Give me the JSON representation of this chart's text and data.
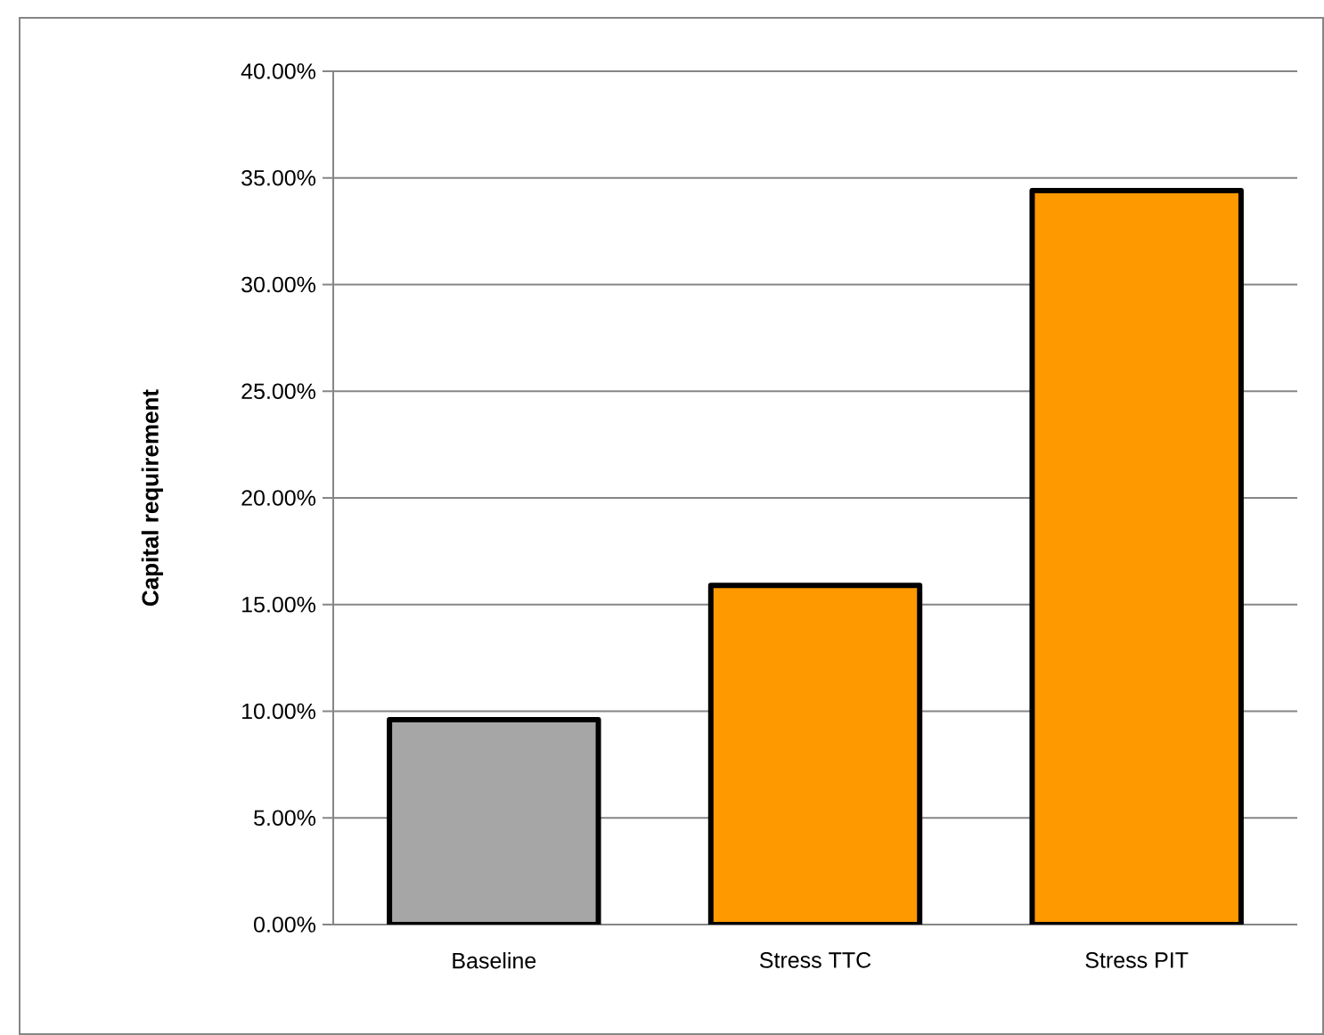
{
  "chart_data": {
    "type": "bar",
    "ylabel": "Capital requirement",
    "categories": [
      "Baseline",
      "Stress TTC",
      "Stress PIT"
    ],
    "values": [
      9.6,
      15.9,
      34.4
    ],
    "colors": [
      "#a6a6a6",
      "#ff9900",
      "#ff9900"
    ],
    "ylim": [
      0,
      40
    ],
    "yticks": [
      {
        "value": 0,
        "label": "0.00%"
      },
      {
        "value": 5,
        "label": "5.00%"
      },
      {
        "value": 10,
        "label": "10.00%"
      },
      {
        "value": 15,
        "label": "15.00%"
      },
      {
        "value": 20,
        "label": "20.00%"
      },
      {
        "value": 25,
        "label": "25.00%"
      },
      {
        "value": 30,
        "label": "30.00%"
      },
      {
        "value": 35,
        "label": "35.00%"
      },
      {
        "value": 40,
        "label": "40.00%"
      }
    ],
    "grid": "y"
  }
}
